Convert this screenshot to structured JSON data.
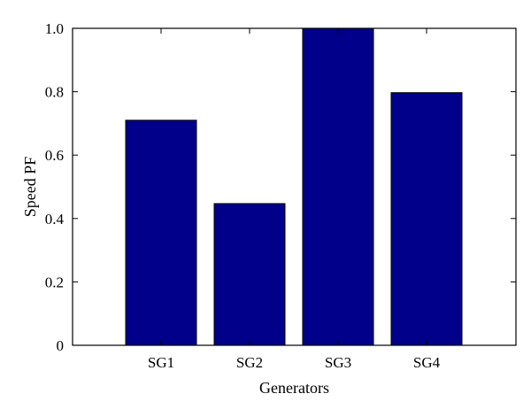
{
  "chart_data": {
    "type": "bar",
    "categories": [
      "SG1",
      "SG2",
      "SG3",
      "SG4"
    ],
    "values": [
      0.71,
      0.447,
      1.0,
      0.797
    ],
    "title": "",
    "xlabel": "Generators",
    "ylabel": "Speed PF",
    "ylim": [
      0,
      1.0
    ],
    "yticks": [
      0,
      0.2,
      0.4,
      0.6,
      0.8,
      1.0
    ],
    "ytick_labels": [
      "0",
      "0.2",
      "0.4",
      "0.6",
      "0.8",
      "1.0"
    ],
    "grid": false,
    "legend": "none",
    "bar_color": "#00008B",
    "bar_edge_color": "#000000"
  }
}
